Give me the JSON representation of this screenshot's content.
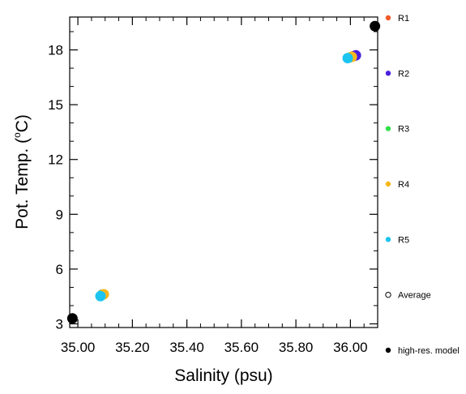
{
  "chart_data": {
    "type": "scatter",
    "title": "",
    "xlabel": "Salinity (psu)",
    "ylabel_main": "Pot. Temp. (",
    "ylabel_unit": "C)",
    "ylabel_degree": "o",
    "xlim": [
      34.97,
      36.1
    ],
    "ylim": [
      2.8,
      19.8
    ],
    "xticks": [
      35.0,
      35.2,
      35.4,
      35.6,
      35.8,
      36.0
    ],
    "xtick_labels": [
      "35.00",
      "35.20",
      "35.40",
      "35.60",
      "35.80",
      "36.00"
    ],
    "yticks": [
      3,
      6,
      9,
      12,
      15,
      18
    ],
    "ytick_labels": [
      "3",
      "6",
      "9",
      "12",
      "15",
      "18"
    ],
    "grid": false,
    "legend_position": "right",
    "series": [
      {
        "name": "R1",
        "color": "#f05a28",
        "marker": "filled",
        "x": [
          35.09,
          36.01
        ],
        "y": [
          4.6,
          17.65
        ]
      },
      {
        "name": "R2",
        "color": "#4b20e0",
        "marker": "filled",
        "x": [
          35.09,
          36.02
        ],
        "y": [
          4.6,
          17.7
        ]
      },
      {
        "name": "R3",
        "color": "#33e04a",
        "marker": "filled",
        "x": [
          35.09,
          36.0
        ],
        "y": [
          4.6,
          17.6
        ]
      },
      {
        "name": "R4",
        "color": "#f5b81c",
        "marker": "filled",
        "x": [
          35.095,
          36.005
        ],
        "y": [
          4.62,
          17.62
        ]
      },
      {
        "name": "R5",
        "color": "#1cc4f0",
        "marker": "filled",
        "x": [
          35.083,
          35.99
        ],
        "y": [
          4.52,
          17.55
        ]
      },
      {
        "name": "Average",
        "color": "#000000",
        "marker": "open",
        "x": [],
        "y": []
      },
      {
        "name": "high-res. model",
        "color": "#000000",
        "marker": "filled",
        "x": [
          34.98,
          36.09
        ],
        "y": [
          3.3,
          19.3
        ]
      }
    ]
  }
}
